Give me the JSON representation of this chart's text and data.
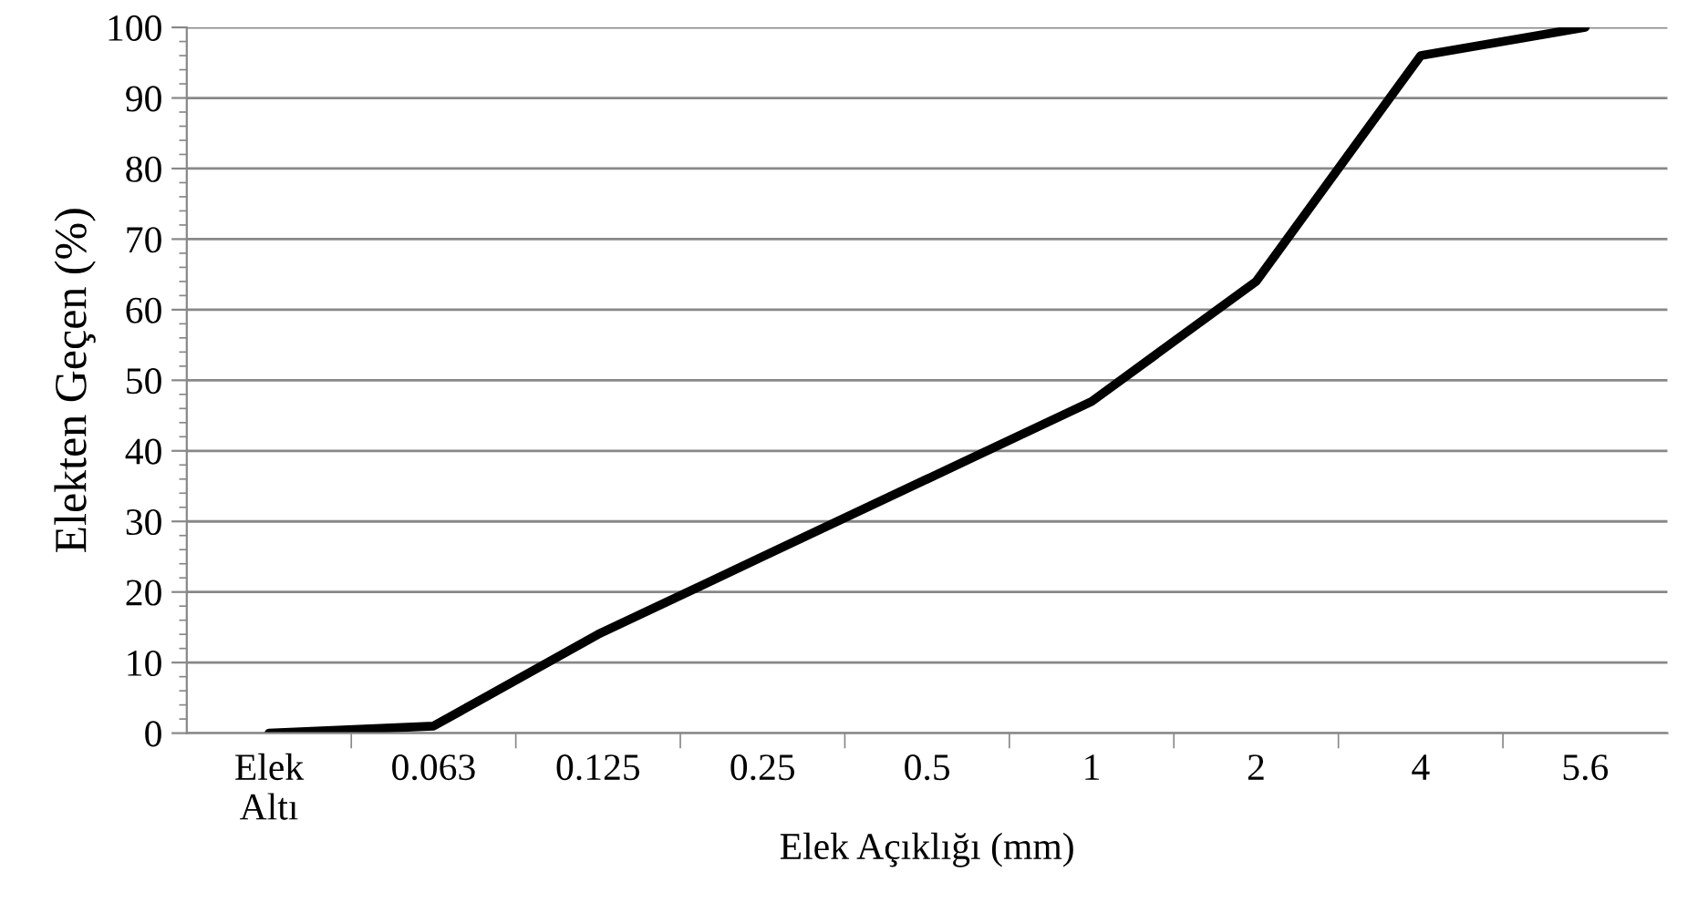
{
  "chart_data": {
    "type": "line",
    "xlabel": "Elek Açıklığı (mm)",
    "ylabel": "Elekten Geçen (%)",
    "categories": [
      "Elek\nAltı",
      "0.063",
      "0.125",
      "0.25",
      "0.5",
      "1",
      "2",
      "4",
      "5.6"
    ],
    "series": [
      {
        "color": "#000000",
        "values": [
          0,
          1,
          14,
          25,
          36,
          47,
          64,
          96,
          100
        ]
      }
    ],
    "ylim": [
      0,
      100
    ],
    "yticks": [
      0,
      10,
      20,
      30,
      40,
      50,
      60,
      70,
      80,
      90,
      100
    ],
    "grid": "y",
    "marker": "none",
    "line_style": "solid"
  }
}
